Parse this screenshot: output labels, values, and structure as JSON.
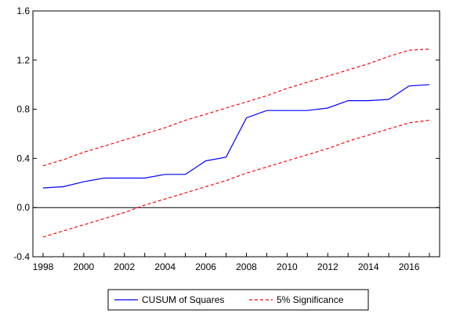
{
  "chart_data": {
    "type": "line",
    "x": [
      1998,
      1999,
      2000,
      2001,
      2002,
      2003,
      2004,
      2005,
      2006,
      2007,
      2008,
      2009,
      2010,
      2011,
      2012,
      2013,
      2014,
      2015,
      2016,
      2017
    ],
    "xlim": [
      1997.5,
      2017.5
    ],
    "x_ticks": [
      1998,
      2000,
      2002,
      2004,
      2006,
      2008,
      2010,
      2012,
      2014,
      2016
    ],
    "ylim": [
      -0.4,
      1.6
    ],
    "y_ticks": [
      -0.4,
      0.0,
      0.4,
      0.8,
      1.2,
      1.6
    ],
    "y_tick_labels": [
      "-0.4",
      "0.0",
      "0.4",
      "0.8",
      "1.2",
      "1.6"
    ],
    "series": [
      {
        "name": "CUSUM of Squares",
        "color": "#0000ff",
        "style": "solid",
        "values": [
          0.16,
          0.17,
          0.21,
          0.24,
          0.24,
          0.24,
          0.27,
          0.27,
          0.38,
          0.41,
          0.73,
          0.79,
          0.79,
          0.79,
          0.81,
          0.87,
          0.87,
          0.88,
          0.99,
          1.0
        ]
      },
      {
        "name": "5% Significance",
        "color": "#ff0000",
        "style": "dashed",
        "values": [
          0.34,
          0.39,
          0.45,
          0.5,
          0.55,
          0.6,
          0.65,
          0.71,
          0.76,
          0.81,
          0.86,
          0.91,
          0.97,
          1.02,
          1.07,
          1.12,
          1.17,
          1.23,
          1.28,
          1.29
        ]
      },
      {
        "name": "",
        "color": "#ff0000",
        "style": "dashed",
        "values": [
          -0.24,
          -0.19,
          -0.14,
          -0.09,
          -0.04,
          0.02,
          0.07,
          0.12,
          0.17,
          0.22,
          0.28,
          0.33,
          0.38,
          0.43,
          0.48,
          0.54,
          0.59,
          0.64,
          0.69,
          0.71
        ]
      }
    ],
    "zero_line": true,
    "grid": false,
    "legend": {
      "placement": "bottom-center",
      "entries": [
        {
          "label": "CUSUM of Squares",
          "color": "#0000ff",
          "style": "solid"
        },
        {
          "label": "5% Significance",
          "color": "#ff0000",
          "style": "dashed"
        }
      ]
    },
    "title": "",
    "xlabel": "",
    "ylabel": ""
  }
}
